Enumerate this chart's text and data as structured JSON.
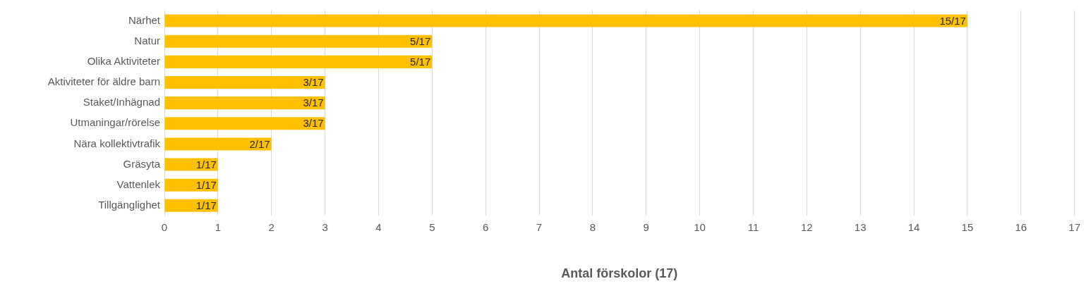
{
  "chart_data": {
    "type": "bar",
    "orientation": "horizontal",
    "xlabel": "Antal förskolor (17)",
    "categories": [
      "Närhet",
      "Natur",
      "Olika Aktiviteter",
      "Aktiviteter för äldre barn",
      "Staket/Inhägnad",
      "Utmaningar/rörelse",
      "Nära kollektivtrafik",
      "Gräsyta",
      "Vattenlek",
      "Tillgänglighet"
    ],
    "values": [
      15,
      5,
      5,
      3,
      3,
      3,
      2,
      1,
      1,
      1
    ],
    "value_labels": [
      "15/17",
      "5/17",
      "5/17",
      "3/17",
      "3/17",
      "3/17",
      "2/17",
      "1/17",
      "1/17",
      "1/17"
    ],
    "color": "#ffc000",
    "xlim": [
      0,
      17
    ],
    "xticks": [
      0,
      1,
      2,
      3,
      4,
      5,
      6,
      7,
      8,
      9,
      10,
      11,
      12,
      13,
      14,
      15,
      16,
      17
    ],
    "grid": "x",
    "legend": false
  }
}
